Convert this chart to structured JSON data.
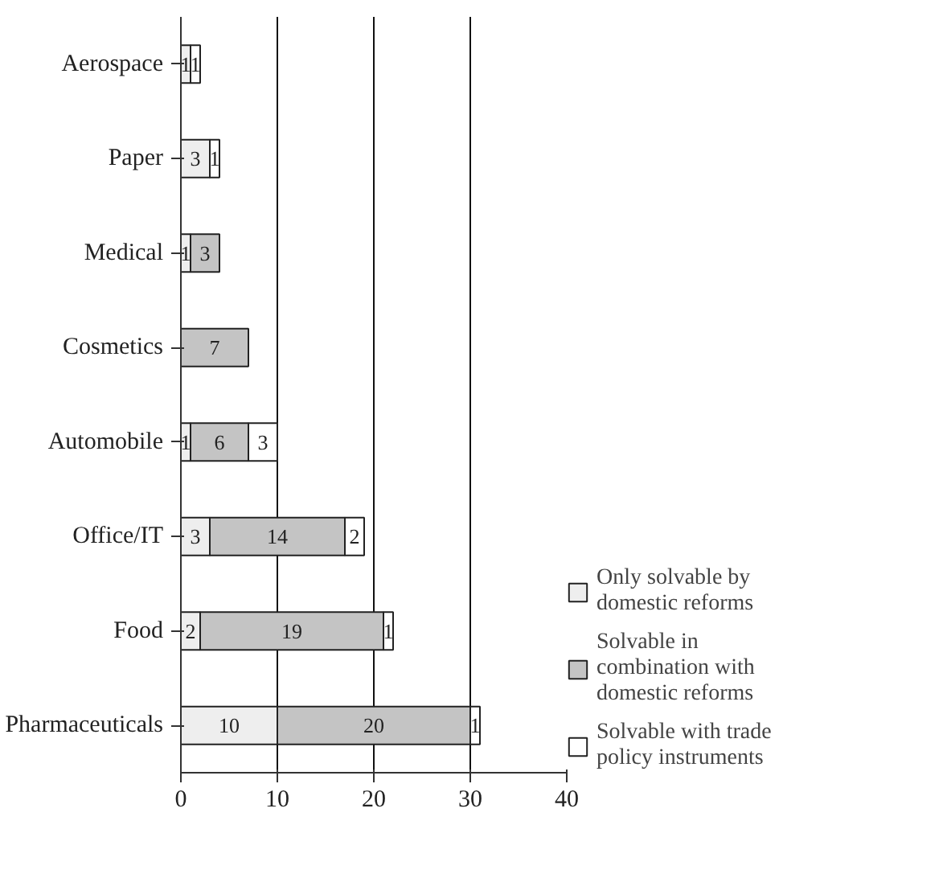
{
  "chart_data": {
    "type": "bar",
    "orientation": "horizontal",
    "stacked": true,
    "categories": [
      "Aerospace",
      "Paper",
      "Medical",
      "Cosmetics",
      "Automobile",
      "Office/IT",
      "Food",
      "Pharmaceuticals"
    ],
    "series": [
      {
        "name": "Only solvable by domestic reforms",
        "color": "#eeeeee",
        "values": [
          1,
          3,
          1,
          null,
          1,
          3,
          2,
          10
        ]
      },
      {
        "name": "Solvable in combination with domestic reforms",
        "color": "#c4c4c4",
        "values": [
          null,
          null,
          3,
          7,
          6,
          14,
          19,
          20
        ]
      },
      {
        "name": "Solvable with trade policy instruments",
        "color": "#ffffff",
        "values": [
          1,
          1,
          null,
          null,
          3,
          2,
          1,
          1
        ]
      }
    ],
    "xlim": [
      0,
      40
    ],
    "xticks": [
      0,
      10,
      20,
      30,
      40
    ],
    "grid": "x",
    "legend": "right",
    "data_labels": true
  }
}
